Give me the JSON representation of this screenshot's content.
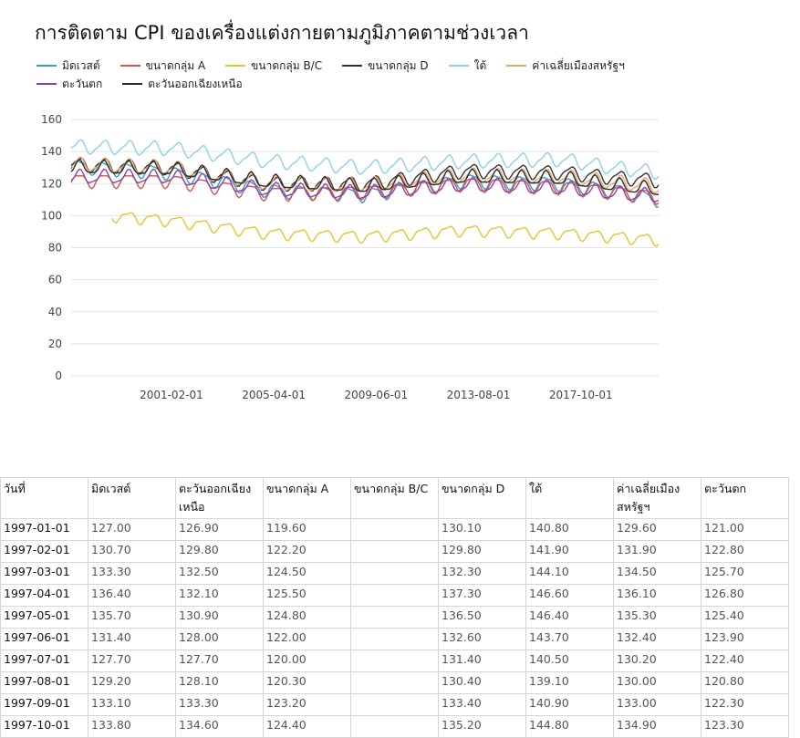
{
  "chart_data": {
    "type": "line",
    "title": "การติดตาม CPI ของเครื่องแต่งกายตามภูมิภาคตามช่วงเวลา",
    "xlabel": "",
    "ylabel": "",
    "x_start": "1997-01-01",
    "x_end": "2020-12-01",
    "x_ticks": [
      "2001-02-01",
      "2005-04-01",
      "2009-06-01",
      "2013-08-01",
      "2017-10-01"
    ],
    "y_ticks": [
      0,
      20,
      40,
      60,
      80,
      100,
      120,
      140,
      160
    ],
    "ylim": [
      0,
      160
    ],
    "grid": true,
    "legend_position": "top-left",
    "series": [
      {
        "name": "มิดเวสต์",
        "color": "#3a9fbf",
        "offset": 0,
        "anchors": [
          [
            1997,
            131
          ],
          [
            2001,
            127
          ],
          [
            2005,
            116
          ],
          [
            2009,
            113
          ],
          [
            2013,
            122
          ],
          [
            2017,
            120
          ],
          [
            2019,
            116
          ],
          [
            2020.9,
            110
          ]
        ]
      },
      {
        "name": "ขนาดกลุ่ม A",
        "color": "#d9534f",
        "offset": 0,
        "anchors": [
          [
            1997,
            122
          ],
          [
            2001,
            122
          ],
          [
            2005,
            114
          ],
          [
            2009,
            115
          ],
          [
            2013,
            120
          ],
          [
            2017,
            118
          ],
          [
            2019,
            115
          ],
          [
            2020.9,
            112
          ]
        ]
      },
      {
        "name": "ขนาดกลุ่ม B/C",
        "color": "#e6c42e",
        "offset": 1.6,
        "anchors": [
          [
            1998.6,
            100
          ],
          [
            2001,
            97
          ],
          [
            2005,
            89
          ],
          [
            2009,
            87
          ],
          [
            2013,
            91
          ],
          [
            2017,
            89
          ],
          [
            2019,
            87
          ],
          [
            2020.9,
            85
          ]
        ]
      },
      {
        "name": "ขนาดกลุ่ม D",
        "color": "#333333",
        "offset": 0,
        "anchors": [
          [
            1997,
            132
          ],
          [
            2001,
            130
          ],
          [
            2005,
            120
          ],
          [
            2009,
            120
          ],
          [
            2013,
            128
          ],
          [
            2017,
            127
          ],
          [
            2019,
            124
          ],
          [
            2020.9,
            122
          ]
        ]
      },
      {
        "name": "ใต้",
        "color": "#8fd0e6",
        "offset": 0,
        "anchors": [
          [
            1997,
            143
          ],
          [
            2001,
            142
          ],
          [
            2005,
            134
          ],
          [
            2009,
            130
          ],
          [
            2013,
            134
          ],
          [
            2017,
            135
          ],
          [
            2019,
            130
          ],
          [
            2020.9,
            127
          ]
        ]
      },
      {
        "name": "ค่าเฉลี่ยเมืองสหรัฐฯ",
        "color": "#f2a36b",
        "offset": 0,
        "anchors": [
          [
            1997,
            132
          ],
          [
            2001,
            130
          ],
          [
            2005,
            120
          ],
          [
            2009,
            119
          ],
          [
            2013,
            125
          ],
          [
            2017,
            124
          ],
          [
            2019,
            121
          ],
          [
            2020.9,
            118
          ]
        ]
      },
      {
        "name": "ตะวันตก",
        "color": "#8e44ad",
        "offset": 0,
        "anchors": [
          [
            1997,
            124
          ],
          [
            2001,
            124
          ],
          [
            2005,
            116
          ],
          [
            2009,
            114
          ],
          [
            2013,
            119
          ],
          [
            2017,
            117
          ],
          [
            2019,
            114
          ],
          [
            2020.9,
            112
          ]
        ]
      },
      {
        "name": "ตะวันออกเฉียงเหนือ",
        "color": "#2b2b2b",
        "offset": 0,
        "anchors": [
          [
            1997,
            130
          ],
          [
            2001,
            129
          ],
          [
            2005,
            121
          ],
          [
            2009,
            118
          ],
          [
            2013,
            124
          ],
          [
            2017,
            123
          ],
          [
            2019,
            119
          ],
          [
            2020.9,
            116
          ]
        ]
      }
    ],
    "seasonal_amplitude": 4
  },
  "table": {
    "headers": [
      "วันที่",
      "มิดเวสต์",
      "ตะวันออกเฉียงเหนือ",
      "ขนาดกลุ่ม A",
      "ขนาดกลุ่ม B/C",
      "ขนาดกลุ่ม D",
      "ใต้",
      "ค่าเฉลี่ยเมืองสหรัฐฯ",
      "ตะวันตก"
    ],
    "rows": [
      [
        "1997-01-01",
        "127.00",
        "126.90",
        "119.60",
        "",
        "130.10",
        "140.80",
        "129.60",
        "121.00"
      ],
      [
        "1997-02-01",
        "130.70",
        "129.80",
        "122.20",
        "",
        "129.80",
        "141.90",
        "131.90",
        "122.80"
      ],
      [
        "1997-03-01",
        "133.30",
        "132.50",
        "124.50",
        "",
        "132.30",
        "144.10",
        "134.50",
        "125.70"
      ],
      [
        "1997-04-01",
        "136.40",
        "132.10",
        "125.50",
        "",
        "137.30",
        "146.60",
        "136.10",
        "126.80"
      ],
      [
        "1997-05-01",
        "135.70",
        "130.90",
        "124.80",
        "",
        "136.50",
        "146.40",
        "135.30",
        "125.40"
      ],
      [
        "1997-06-01",
        "131.40",
        "128.00",
        "122.00",
        "",
        "132.60",
        "143.70",
        "132.40",
        "123.90"
      ],
      [
        "1997-07-01",
        "127.70",
        "127.70",
        "120.00",
        "",
        "131.40",
        "140.50",
        "130.20",
        "122.40"
      ],
      [
        "1997-08-01",
        "129.20",
        "128.10",
        "120.30",
        "",
        "130.40",
        "139.10",
        "130.00",
        "120.80"
      ],
      [
        "1997-09-01",
        "133.10",
        "133.30",
        "123.20",
        "",
        "133.40",
        "140.90",
        "133.00",
        "122.30"
      ],
      [
        "1997-10-01",
        "133.80",
        "134.60",
        "124.40",
        "",
        "135.20",
        "144.80",
        "134.90",
        "123.30"
      ]
    ]
  }
}
